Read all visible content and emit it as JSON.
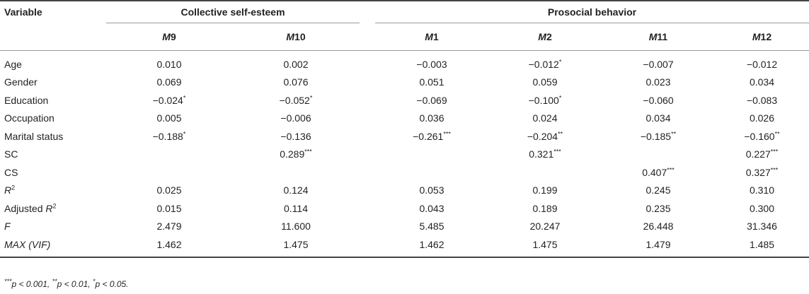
{
  "table": {
    "variable_header": "Variable",
    "groups": [
      {
        "label": "Collective self-esteem"
      },
      {
        "label": "Prosocial behavior"
      }
    ],
    "models": [
      {
        "m": "M",
        "n": "9"
      },
      {
        "m": "M",
        "n": "10"
      },
      {
        "m": "M",
        "n": "1"
      },
      {
        "m": "M",
        "n": "2"
      },
      {
        "m": "M",
        "n": "11"
      },
      {
        "m": "M",
        "n": "12"
      }
    ],
    "rows": [
      {
        "label": "Age",
        "cells": [
          {
            "v": "0.010",
            "s": ""
          },
          {
            "v": "0.002",
            "s": ""
          },
          {
            "v": "−0.003",
            "s": ""
          },
          {
            "v": "−0.012",
            "s": "*"
          },
          {
            "v": "−0.007",
            "s": ""
          },
          {
            "v": "−0.012",
            "s": ""
          }
        ]
      },
      {
        "label": "Gender",
        "cells": [
          {
            "v": "0.069",
            "s": ""
          },
          {
            "v": "0.076",
            "s": ""
          },
          {
            "v": "0.051",
            "s": ""
          },
          {
            "v": "0.059",
            "s": ""
          },
          {
            "v": "0.023",
            "s": ""
          },
          {
            "v": "0.034",
            "s": ""
          }
        ]
      },
      {
        "label": "Education",
        "cells": [
          {
            "v": "−0.024",
            "s": "*"
          },
          {
            "v": "−0.052",
            "s": "*"
          },
          {
            "v": "−0.069",
            "s": ""
          },
          {
            "v": "−0.100",
            "s": "*"
          },
          {
            "v": "−0.060",
            "s": ""
          },
          {
            "v": "−0.083",
            "s": ""
          }
        ]
      },
      {
        "label": "Occupation",
        "cells": [
          {
            "v": "0.005",
            "s": ""
          },
          {
            "v": "−0.006",
            "s": ""
          },
          {
            "v": "0.036",
            "s": ""
          },
          {
            "v": "0.024",
            "s": ""
          },
          {
            "v": "0.034",
            "s": ""
          },
          {
            "v": "0.026",
            "s": ""
          }
        ]
      },
      {
        "label": "Marital status",
        "cells": [
          {
            "v": "−0.188",
            "s": "*"
          },
          {
            "v": "−0.136",
            "s": ""
          },
          {
            "v": "−0.261",
            "s": "***"
          },
          {
            "v": "−0.204",
            "s": "**"
          },
          {
            "v": "−0.185",
            "s": "**"
          },
          {
            "v": "−0.160",
            "s": "**"
          }
        ]
      },
      {
        "label": "SC",
        "cells": [
          {
            "v": "",
            "s": ""
          },
          {
            "v": "0.289",
            "s": "***"
          },
          {
            "v": "",
            "s": ""
          },
          {
            "v": "0.321",
            "s": "***"
          },
          {
            "v": "",
            "s": ""
          },
          {
            "v": "0.227",
            "s": "***"
          }
        ]
      },
      {
        "label": "CS",
        "cells": [
          {
            "v": "",
            "s": ""
          },
          {
            "v": "",
            "s": ""
          },
          {
            "v": "",
            "s": ""
          },
          {
            "v": "",
            "s": ""
          },
          {
            "v": "0.407",
            "s": "***"
          },
          {
            "v": "0.327",
            "s": "***"
          }
        ]
      },
      {
        "label": "R",
        "label_sup": "2",
        "italic": true,
        "cells": [
          {
            "v": "0.025",
            "s": ""
          },
          {
            "v": "0.124",
            "s": ""
          },
          {
            "v": "0.053",
            "s": ""
          },
          {
            "v": "0.199",
            "s": ""
          },
          {
            "v": "0.245",
            "s": ""
          },
          {
            "v": "0.310",
            "s": ""
          }
        ]
      },
      {
        "label": "Adjusted ",
        "label_it": "R",
        "label_sup": "2",
        "cells": [
          {
            "v": "0.015",
            "s": ""
          },
          {
            "v": "0.114",
            "s": ""
          },
          {
            "v": "0.043",
            "s": ""
          },
          {
            "v": "0.189",
            "s": ""
          },
          {
            "v": "0.235",
            "s": ""
          },
          {
            "v": "0.300",
            "s": ""
          }
        ]
      },
      {
        "label": "F",
        "italic": true,
        "cells": [
          {
            "v": "2.479",
            "s": ""
          },
          {
            "v": "11.600",
            "s": ""
          },
          {
            "v": "5.485",
            "s": ""
          },
          {
            "v": "20.247",
            "s": ""
          },
          {
            "v": "26.448",
            "s": ""
          },
          {
            "v": "31.346",
            "s": ""
          }
        ]
      },
      {
        "label": "MAX (VIF)",
        "italic": true,
        "cells": [
          {
            "v": "1.462",
            "s": ""
          },
          {
            "v": "1.475",
            "s": ""
          },
          {
            "v": "1.462",
            "s": ""
          },
          {
            "v": "1.475",
            "s": ""
          },
          {
            "v": "1.479",
            "s": ""
          },
          {
            "v": "1.485",
            "s": ""
          }
        ]
      }
    ],
    "note": [
      {
        "sup": "***",
        "text": "p < 0.001, "
      },
      {
        "sup": "**",
        "text": "p < 0.01, "
      },
      {
        "sup": "*",
        "text": "p < 0.05."
      }
    ]
  }
}
